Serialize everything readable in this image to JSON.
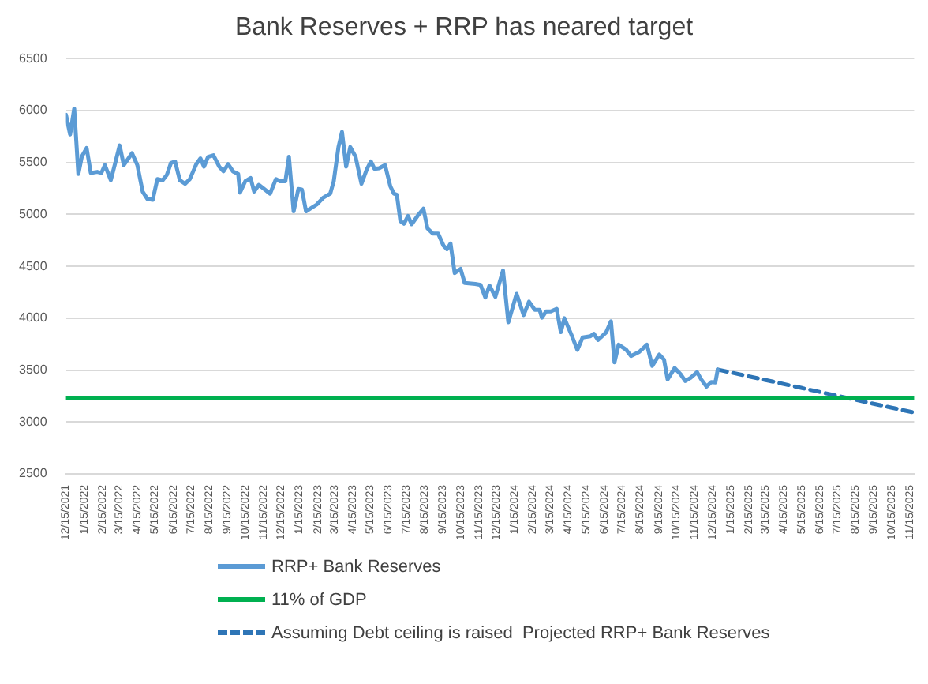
{
  "chart_data": {
    "type": "line",
    "title": "Bank Reserves + RRP has neared target",
    "xlim": [
      "2021-12-15",
      "2025-11-22"
    ],
    "xticks": [
      {
        "value": "2021-12-15",
        "label": "12/15/2021"
      },
      {
        "value": "2022-01-15",
        "label": "1/15/2022"
      },
      {
        "value": "2022-02-15",
        "label": "2/15/2022"
      },
      {
        "value": "2022-03-15",
        "label": "3/15/2022"
      },
      {
        "value": "2022-04-15",
        "label": "4/15/2022"
      },
      {
        "value": "2022-05-15",
        "label": "5/15/2022"
      },
      {
        "value": "2022-06-15",
        "label": "6/15/2022"
      },
      {
        "value": "2022-07-15",
        "label": "7/15/2022"
      },
      {
        "value": "2022-08-15",
        "label": "8/15/2022"
      },
      {
        "value": "2022-09-15",
        "label": "9/15/2022"
      },
      {
        "value": "2022-10-15",
        "label": "10/15/2022"
      },
      {
        "value": "2022-11-15",
        "label": "11/15/2022"
      },
      {
        "value": "2022-12-15",
        "label": "12/15/2022"
      },
      {
        "value": "2023-01-15",
        "label": "1/15/2023"
      },
      {
        "value": "2023-02-15",
        "label": "2/15/2023"
      },
      {
        "value": "2023-03-15",
        "label": "3/15/2023"
      },
      {
        "value": "2023-04-15",
        "label": "4/15/2023"
      },
      {
        "value": "2023-05-15",
        "label": "5/15/2023"
      },
      {
        "value": "2023-06-15",
        "label": "6/15/2023"
      },
      {
        "value": "2023-07-15",
        "label": "7/15/2023"
      },
      {
        "value": "2023-08-15",
        "label": "8/15/2023"
      },
      {
        "value": "2023-09-15",
        "label": "9/15/2023"
      },
      {
        "value": "2023-10-15",
        "label": "10/15/2023"
      },
      {
        "value": "2023-11-15",
        "label": "11/15/2023"
      },
      {
        "value": "2023-12-15",
        "label": "12/15/2023"
      },
      {
        "value": "2024-01-15",
        "label": "1/15/2024"
      },
      {
        "value": "2024-02-15",
        "label": "2/15/2024"
      },
      {
        "value": "2024-03-15",
        "label": "3/15/2024"
      },
      {
        "value": "2024-04-15",
        "label": "4/15/2024"
      },
      {
        "value": "2024-05-15",
        "label": "5/15/2024"
      },
      {
        "value": "2024-06-15",
        "label": "6/15/2024"
      },
      {
        "value": "2024-07-15",
        "label": "7/15/2024"
      },
      {
        "value": "2024-08-15",
        "label": "8/15/2024"
      },
      {
        "value": "2024-09-15",
        "label": "9/15/2024"
      },
      {
        "value": "2024-10-15",
        "label": "10/15/2024"
      },
      {
        "value": "2024-11-15",
        "label": "11/15/2024"
      },
      {
        "value": "2024-12-15",
        "label": "12/15/2024"
      },
      {
        "value": "2025-01-15",
        "label": "1/15/2025"
      },
      {
        "value": "2025-02-15",
        "label": "2/15/2025"
      },
      {
        "value": "2025-03-15",
        "label": "3/15/2025"
      },
      {
        "value": "2025-04-15",
        "label": "4/15/2025"
      },
      {
        "value": "2025-05-15",
        "label": "5/15/2025"
      },
      {
        "value": "2025-06-15",
        "label": "6/15/2025"
      },
      {
        "value": "2025-07-15",
        "label": "7/15/2025"
      },
      {
        "value": "2025-08-15",
        "label": "8/15/2025"
      },
      {
        "value": "2025-09-15",
        "label": "9/15/2025"
      },
      {
        "value": "2025-10-15",
        "label": "10/15/2025"
      },
      {
        "value": "2025-11-15",
        "label": "11/15/2025"
      }
    ],
    "ylim": [
      2500,
      6500
    ],
    "yticks": [
      2500,
      3000,
      3500,
      4000,
      4500,
      5000,
      5500,
      6000,
      6500
    ],
    "grid": "y",
    "legend": "bottom",
    "marker": "none",
    "series": [
      {
        "name": "RRP+ Bank Reserves",
        "color": "#5b9bd5",
        "line_style": "solid",
        "x": [
          "2021-12-15",
          "2021-12-22",
          "2021-12-29",
          "2022-01-05",
          "2022-01-11",
          "2022-01-19",
          "2022-01-26",
          "2022-02-06",
          "2022-02-13",
          "2022-02-19",
          "2022-03-01",
          "2022-03-08",
          "2022-03-16",
          "2022-03-23",
          "2022-04-06",
          "2022-04-15",
          "2022-04-24",
          "2022-05-02",
          "2022-05-11",
          "2022-05-19",
          "2022-05-28",
          "2022-06-04",
          "2022-06-11",
          "2022-06-18",
          "2022-06-26",
          "2022-07-05",
          "2022-07-13",
          "2022-07-24",
          "2022-07-31",
          "2022-08-06",
          "2022-08-13",
          "2022-08-22",
          "2022-09-01",
          "2022-09-08",
          "2022-09-16",
          "2022-09-24",
          "2022-10-03",
          "2022-10-06",
          "2022-10-15",
          "2022-10-24",
          "2022-10-30",
          "2022-11-07",
          "2022-11-16",
          "2022-11-26",
          "2022-12-06",
          "2022-12-13",
          "2022-12-22",
          "2022-12-28",
          "2023-01-05",
          "2023-01-13",
          "2023-01-19",
          "2023-01-26",
          "2023-02-13",
          "2023-02-24",
          "2023-03-08",
          "2023-03-14",
          "2023-03-22",
          "2023-03-28",
          "2023-04-04",
          "2023-04-11",
          "2023-04-20",
          "2023-04-30",
          "2023-05-09",
          "2023-05-16",
          "2023-05-22",
          "2023-05-30",
          "2023-06-09",
          "2023-06-18",
          "2023-06-24",
          "2023-06-29",
          "2023-07-05",
          "2023-07-11",
          "2023-07-18",
          "2023-07-24",
          "2023-08-03",
          "2023-08-13",
          "2023-08-20",
          "2023-08-29",
          "2023-09-07",
          "2023-09-16",
          "2023-09-22",
          "2023-09-28",
          "2023-10-05",
          "2023-10-15",
          "2023-10-22",
          "2023-11-09",
          "2023-11-18",
          "2023-11-26",
          "2023-12-03",
          "2023-12-13",
          "2023-12-26",
          "2024-01-04",
          "2024-01-18",
          "2024-01-30",
          "2024-02-08",
          "2024-02-18",
          "2024-02-26",
          "2024-03-01",
          "2024-03-08",
          "2024-03-16",
          "2024-03-26",
          "2024-04-02",
          "2024-04-08",
          "2024-04-20",
          "2024-04-30",
          "2024-05-09",
          "2024-05-22",
          "2024-05-28",
          "2024-06-04",
          "2024-06-18",
          "2024-06-26",
          "2024-07-02",
          "2024-07-09",
          "2024-07-22",
          "2024-07-30",
          "2024-08-13",
          "2024-08-26",
          "2024-09-04",
          "2024-09-16",
          "2024-09-24",
          "2024-09-30",
          "2024-10-12",
          "2024-10-22",
          "2024-10-30",
          "2024-11-08",
          "2024-11-19",
          "2024-11-26",
          "2024-12-05",
          "2024-12-13",
          "2024-12-20",
          "2024-12-24"
        ],
        "values": [
          5960,
          5770,
          6020,
          5390,
          5560,
          5640,
          5400,
          5410,
          5400,
          5475,
          5330,
          5485,
          5665,
          5475,
          5590,
          5475,
          5220,
          5150,
          5140,
          5340,
          5330,
          5380,
          5495,
          5510,
          5330,
          5295,
          5340,
          5485,
          5540,
          5460,
          5555,
          5570,
          5460,
          5415,
          5485,
          5415,
          5390,
          5210,
          5320,
          5350,
          5220,
          5285,
          5245,
          5200,
          5340,
          5320,
          5320,
          5555,
          5030,
          5245,
          5240,
          5030,
          5095,
          5160,
          5200,
          5320,
          5650,
          5795,
          5460,
          5650,
          5555,
          5295,
          5435,
          5510,
          5440,
          5445,
          5475,
          5270,
          5200,
          5190,
          4935,
          4910,
          4985,
          4905,
          4985,
          5055,
          4865,
          4815,
          4815,
          4700,
          4665,
          4720,
          4435,
          4475,
          4340,
          4330,
          4320,
          4200,
          4315,
          4205,
          4460,
          3960,
          4235,
          4030,
          4160,
          4080,
          4080,
          4005,
          4065,
          4065,
          4090,
          3865,
          4000,
          3840,
          3695,
          3815,
          3825,
          3850,
          3790,
          3865,
          3970,
          3575,
          3745,
          3695,
          3635,
          3675,
          3745,
          3540,
          3650,
          3600,
          3410,
          3520,
          3460,
          3395,
          3425,
          3480,
          3410,
          3340,
          3385,
          3380,
          3505
        ]
      },
      {
        "name": "11% of GDP",
        "color": "#00b050",
        "line_style": "solid",
        "x": [
          "2021-12-15",
          "2025-11-22"
        ],
        "values": [
          3230,
          3230
        ]
      },
      {
        "name": "Assuming Debt ceiling is raised  Projected RRP+ Bank Reserves",
        "color": "#2e75b6",
        "line_style": "dashed",
        "x": [
          "2024-12-24",
          "2025-11-22"
        ],
        "values": [
          3505,
          3090
        ]
      }
    ]
  }
}
